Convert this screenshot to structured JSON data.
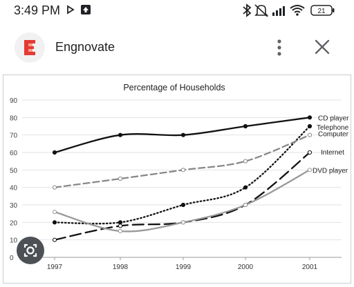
{
  "status_bar": {
    "time": "3:49 PM",
    "battery_level": "21",
    "icons": [
      "play-store-notification-icon",
      "download-notification-icon",
      "bluetooth-icon",
      "alarm-off-icon",
      "signal-icon",
      "wifi-icon",
      "battery-icon"
    ]
  },
  "app": {
    "title": "Engnovate",
    "logo_icon": "engnovate-logo-icon",
    "brand_color": "#e53935",
    "menu_icon": "more-vert-icon",
    "close_icon": "close-icon"
  },
  "lens_icon": "google-lens-icon",
  "chart_data": {
    "type": "line",
    "title": "Percentage of Households",
    "xlabel": "",
    "ylabel": "",
    "ylim": [
      0,
      90
    ],
    "yticks": [
      "0",
      "10",
      "20",
      "30",
      "40",
      "50",
      "60",
      "70",
      "80",
      "90"
    ],
    "categories": [
      "1997",
      "1998",
      "1999",
      "2000",
      "2001"
    ],
    "grid": true,
    "legend": "labels at line ends",
    "series": [
      {
        "name": "CD player",
        "values": [
          60,
          70,
          70,
          75,
          80
        ],
        "color": "#111111",
        "style": "solid",
        "marker": "filled"
      },
      {
        "name": "Telephone",
        "values": [
          20,
          20,
          30,
          40,
          75
        ],
        "color": "#111111",
        "style": "dotted",
        "marker": "filled"
      },
      {
        "name": "Computer",
        "values": [
          40,
          45,
          50,
          55,
          70
        ],
        "color": "#888888",
        "style": "dashed",
        "marker": "hollow"
      },
      {
        "name": "Internet",
        "values": [
          10,
          18,
          20,
          30,
          60
        ],
        "color": "#111111",
        "style": "longdash",
        "marker": "hollow"
      },
      {
        "name": "DVD player",
        "values": [
          26,
          15,
          20,
          30,
          50
        ],
        "color": "#999999",
        "style": "solid",
        "marker": "hollow"
      }
    ]
  }
}
